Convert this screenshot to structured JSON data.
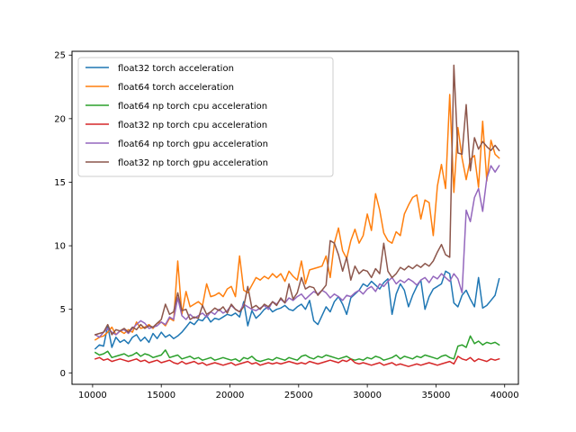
{
  "chart_data": {
    "type": "line",
    "title": "",
    "xlabel": "",
    "ylabel": "",
    "xlim": [
      8500,
      41000
    ],
    "ylim": [
      -0.9,
      25.3
    ],
    "xticks": [
      10000,
      15000,
      20000,
      25000,
      30000,
      35000,
      40000
    ],
    "xtick_labels": [
      "10000",
      "15000",
      "20000",
      "25000",
      "30000",
      "35000",
      "40000"
    ],
    "yticks": [
      0,
      5,
      10,
      15,
      20,
      25
    ],
    "ytick_labels": [
      "0",
      "5",
      "10",
      "15",
      "20",
      "25"
    ],
    "grid": false,
    "legend_position": "upper-left",
    "x": [
      10200,
      10500,
      10800,
      11100,
      11400,
      11700,
      12000,
      12300,
      12600,
      12900,
      13200,
      13500,
      13800,
      14100,
      14400,
      14700,
      15000,
      15300,
      15600,
      15900,
      16200,
      16500,
      16800,
      17100,
      17400,
      17700,
      18000,
      18300,
      18600,
      18900,
      19200,
      19500,
      19800,
      20100,
      20400,
      20700,
      21000,
      21300,
      21600,
      21900,
      22200,
      22500,
      22800,
      23100,
      23400,
      23700,
      24000,
      24300,
      24600,
      24900,
      25200,
      25500,
      25800,
      26100,
      26400,
      26700,
      27000,
      27300,
      27600,
      27900,
      28200,
      28500,
      28800,
      29100,
      29400,
      29700,
      30000,
      30300,
      30600,
      30900,
      31200,
      31500,
      31800,
      32100,
      32400,
      32700,
      33000,
      33300,
      33600,
      33900,
      34200,
      34500,
      34800,
      35100,
      35400,
      35700,
      36000,
      36300,
      36600,
      36900,
      37200,
      37500,
      37800,
      38100,
      38400,
      38700,
      39000,
      39300,
      39600
    ],
    "series": [
      {
        "name": "float32 torch acceleration",
        "color": "#1f77b4",
        "values": [
          1.9,
          2.2,
          2.1,
          3.7,
          2.0,
          2.8,
          2.4,
          2.6,
          2.3,
          2.8,
          3.0,
          2.5,
          2.8,
          2.4,
          3.1,
          2.7,
          3.2,
          2.8,
          3.0,
          2.7,
          2.9,
          3.2,
          3.6,
          4.0,
          3.8,
          4.2,
          4.1,
          4.5,
          4.0,
          4.3,
          4.2,
          4.4,
          4.6,
          4.5,
          4.7,
          4.4,
          5.6,
          3.7,
          4.9,
          4.3,
          4.6,
          5.0,
          5.2,
          4.8,
          5.0,
          5.1,
          5.3,
          5.0,
          4.9,
          5.2,
          5.4,
          5.0,
          5.7,
          4.1,
          3.8,
          4.5,
          5.2,
          4.8,
          5.6,
          6.0,
          5.4,
          4.6,
          5.9,
          6.2,
          6.5,
          7.0,
          6.8,
          7.2,
          6.9,
          6.6,
          7.1,
          7.4,
          4.6,
          6.2,
          7.0,
          6.5,
          5.2,
          6.1,
          6.8,
          7.3,
          5.0,
          6.0,
          6.6,
          6.8,
          7.0,
          8.0,
          7.8,
          5.5,
          5.2,
          6.1,
          6.5,
          5.8,
          5.2,
          7.5,
          5.1,
          5.3,
          5.7,
          6.1,
          7.4
        ]
      },
      {
        "name": "float64 torch acceleration",
        "color": "#ff7f0e",
        "values": [
          2.6,
          2.8,
          2.9,
          3.2,
          3.6,
          3.0,
          3.3,
          3.1,
          3.4,
          3.2,
          4.0,
          3.5,
          3.6,
          3.8,
          3.5,
          3.9,
          4.0,
          3.7,
          4.3,
          4.1,
          8.8,
          4.6,
          6.4,
          5.2,
          5.4,
          5.6,
          5.3,
          7.0,
          6.0,
          6.1,
          6.3,
          6.0,
          6.6,
          6.8,
          6.0,
          9.2,
          6.5,
          6.3,
          6.9,
          7.5,
          7.3,
          7.6,
          7.4,
          7.8,
          7.5,
          7.8,
          7.2,
          8.0,
          7.6,
          7.3,
          8.8,
          7.0,
          8.1,
          8.2,
          8.3,
          8.4,
          9.2,
          7.5,
          10.2,
          11.4,
          9.6,
          9.0,
          10.4,
          11.3,
          10.2,
          10.8,
          12.5,
          11.2,
          14.1,
          12.8,
          11.0,
          10.4,
          10.2,
          11.1,
          10.8,
          12.5,
          13.2,
          13.8,
          14.0,
          12.1,
          13.6,
          13.4,
          10.8,
          14.7,
          16.4,
          14.5,
          21.9,
          14.2,
          19.3,
          16.9,
          15.2,
          16.8,
          17.1,
          14.6,
          19.8,
          15.1,
          18.3,
          17.2,
          16.9
        ]
      },
      {
        "name": "float64 np torch cpu acceleration",
        "color": "#2ca02c",
        "values": [
          1.6,
          1.4,
          1.5,
          1.7,
          1.2,
          1.3,
          1.4,
          1.5,
          1.3,
          1.4,
          1.6,
          1.3,
          1.5,
          1.4,
          1.2,
          1.3,
          1.4,
          1.8,
          1.2,
          1.3,
          1.4,
          1.1,
          1.2,
          1.3,
          1.1,
          1.2,
          1.0,
          1.1,
          1.2,
          1.0,
          1.1,
          1.2,
          1.1,
          1.0,
          1.1,
          0.9,
          1.2,
          1.1,
          1.3,
          1.0,
          0.9,
          1.0,
          1.1,
          1.0,
          1.2,
          1.1,
          1.0,
          1.2,
          1.1,
          1.0,
          1.3,
          1.4,
          1.2,
          1.1,
          1.3,
          1.2,
          1.4,
          1.3,
          1.2,
          1.1,
          1.2,
          1.3,
          1.1,
          1.0,
          1.1,
          1.0,
          1.2,
          1.1,
          1.3,
          1.2,
          1.0,
          1.1,
          1.2,
          1.4,
          1.1,
          1.3,
          1.2,
          1.1,
          1.3,
          1.2,
          1.4,
          1.3,
          1.2,
          1.1,
          1.3,
          1.4,
          1.2,
          1.1,
          2.1,
          2.2,
          2.0,
          2.9,
          2.3,
          2.5,
          2.2,
          2.4,
          2.3,
          2.4,
          2.2
        ]
      },
      {
        "name": "float32 np torch cpu acceleration",
        "color": "#d62728",
        "values": [
          1.1,
          1.2,
          1.0,
          1.1,
          0.9,
          1.0,
          1.1,
          1.0,
          0.9,
          1.0,
          1.1,
          0.9,
          1.0,
          0.8,
          0.9,
          1.0,
          0.8,
          0.9,
          1.0,
          0.8,
          0.7,
          0.9,
          0.7,
          0.8,
          0.9,
          0.7,
          0.8,
          0.6,
          0.7,
          0.8,
          0.7,
          0.6,
          0.7,
          0.8,
          0.6,
          0.7,
          0.8,
          0.9,
          0.7,
          0.8,
          0.6,
          0.7,
          0.8,
          0.7,
          0.8,
          0.7,
          0.8,
          0.9,
          0.8,
          0.7,
          0.8,
          0.7,
          0.9,
          0.8,
          0.7,
          0.8,
          0.9,
          1.0,
          0.9,
          0.8,
          1.0,
          0.9,
          1.1,
          0.8,
          0.7,
          0.8,
          0.7,
          0.6,
          0.7,
          0.8,
          0.6,
          0.7,
          0.8,
          0.6,
          0.7,
          0.6,
          0.5,
          0.6,
          0.7,
          0.6,
          0.7,
          0.8,
          0.7,
          0.6,
          0.7,
          0.8,
          0.9,
          0.7,
          1.3,
          1.1,
          1.0,
          1.2,
          0.9,
          1.1,
          1.0,
          0.9,
          1.1,
          1.0,
          1.1
        ]
      },
      {
        "name": "float64 np torch gpu acceleration",
        "color": "#9467bd",
        "values": [
          3.0,
          2.8,
          3.2,
          3.5,
          3.2,
          3.0,
          3.3,
          3.4,
          3.1,
          3.5,
          3.8,
          4.1,
          3.9,
          3.5,
          3.6,
          3.7,
          4.0,
          3.8,
          4.4,
          4.2,
          5.9,
          4.5,
          4.2,
          4.6,
          4.3,
          4.5,
          4.7,
          4.4,
          4.8,
          4.6,
          5.0,
          4.7,
          4.9,
          5.3,
          5.0,
          4.8,
          5.4,
          5.2,
          5.0,
          4.9,
          5.1,
          5.3,
          5.0,
          5.6,
          5.4,
          5.8,
          5.5,
          5.9,
          5.7,
          6.0,
          6.2,
          5.8,
          6.1,
          6.4,
          6.2,
          6.5,
          6.3,
          5.9,
          6.2,
          6.0,
          5.7,
          6.1,
          6.0,
          6.3,
          6.5,
          6.2,
          6.6,
          6.8,
          6.4,
          7.0,
          6.8,
          7.2,
          7.5,
          7.0,
          7.3,
          7.1,
          7.4,
          7.2,
          6.9,
          7.3,
          7.5,
          7.1,
          7.6,
          7.4,
          7.8,
          7.5,
          7.2,
          7.8,
          7.4,
          6.3,
          12.8,
          11.9,
          13.8,
          14.5,
          12.7,
          15.3,
          16.3,
          15.8,
          16.3
        ]
      },
      {
        "name": "float32 np torch gpu acceleration",
        "color": "#8c564b",
        "values": [
          3.0,
          3.1,
          3.2,
          3.8,
          3.0,
          3.4,
          3.3,
          3.5,
          3.2,
          3.6,
          3.4,
          3.8,
          3.5,
          3.7,
          3.6,
          3.9,
          4.2,
          5.4,
          4.6,
          4.8,
          6.3,
          4.9,
          5.0,
          4.2,
          4.4,
          4.3,
          5.3,
          4.6,
          4.8,
          5.1,
          4.9,
          5.2,
          4.7,
          5.4,
          5.0,
          4.8,
          5.2,
          6.8,
          5.1,
          5.3,
          5.0,
          5.4,
          5.2,
          5.6,
          5.3,
          5.9,
          5.5,
          7.0,
          5.8,
          6.3,
          7.5,
          6.6,
          6.8,
          6.7,
          6.1,
          6.5,
          6.9,
          10.4,
          10.2,
          9.3,
          8.0,
          9.1,
          7.3,
          8.4,
          7.8,
          8.1,
          8.0,
          7.5,
          8.2,
          7.8,
          10.2,
          8.0,
          7.5,
          7.8,
          8.3,
          8.1,
          8.4,
          8.2,
          8.5,
          8.3,
          8.6,
          8.4,
          8.8,
          9.5,
          10.1,
          9.3,
          9.1,
          24.2,
          17.3,
          17.2,
          21.1,
          15.9,
          18.5,
          17.6,
          18.2,
          17.8,
          17.5,
          17.9,
          17.5
        ]
      }
    ]
  }
}
